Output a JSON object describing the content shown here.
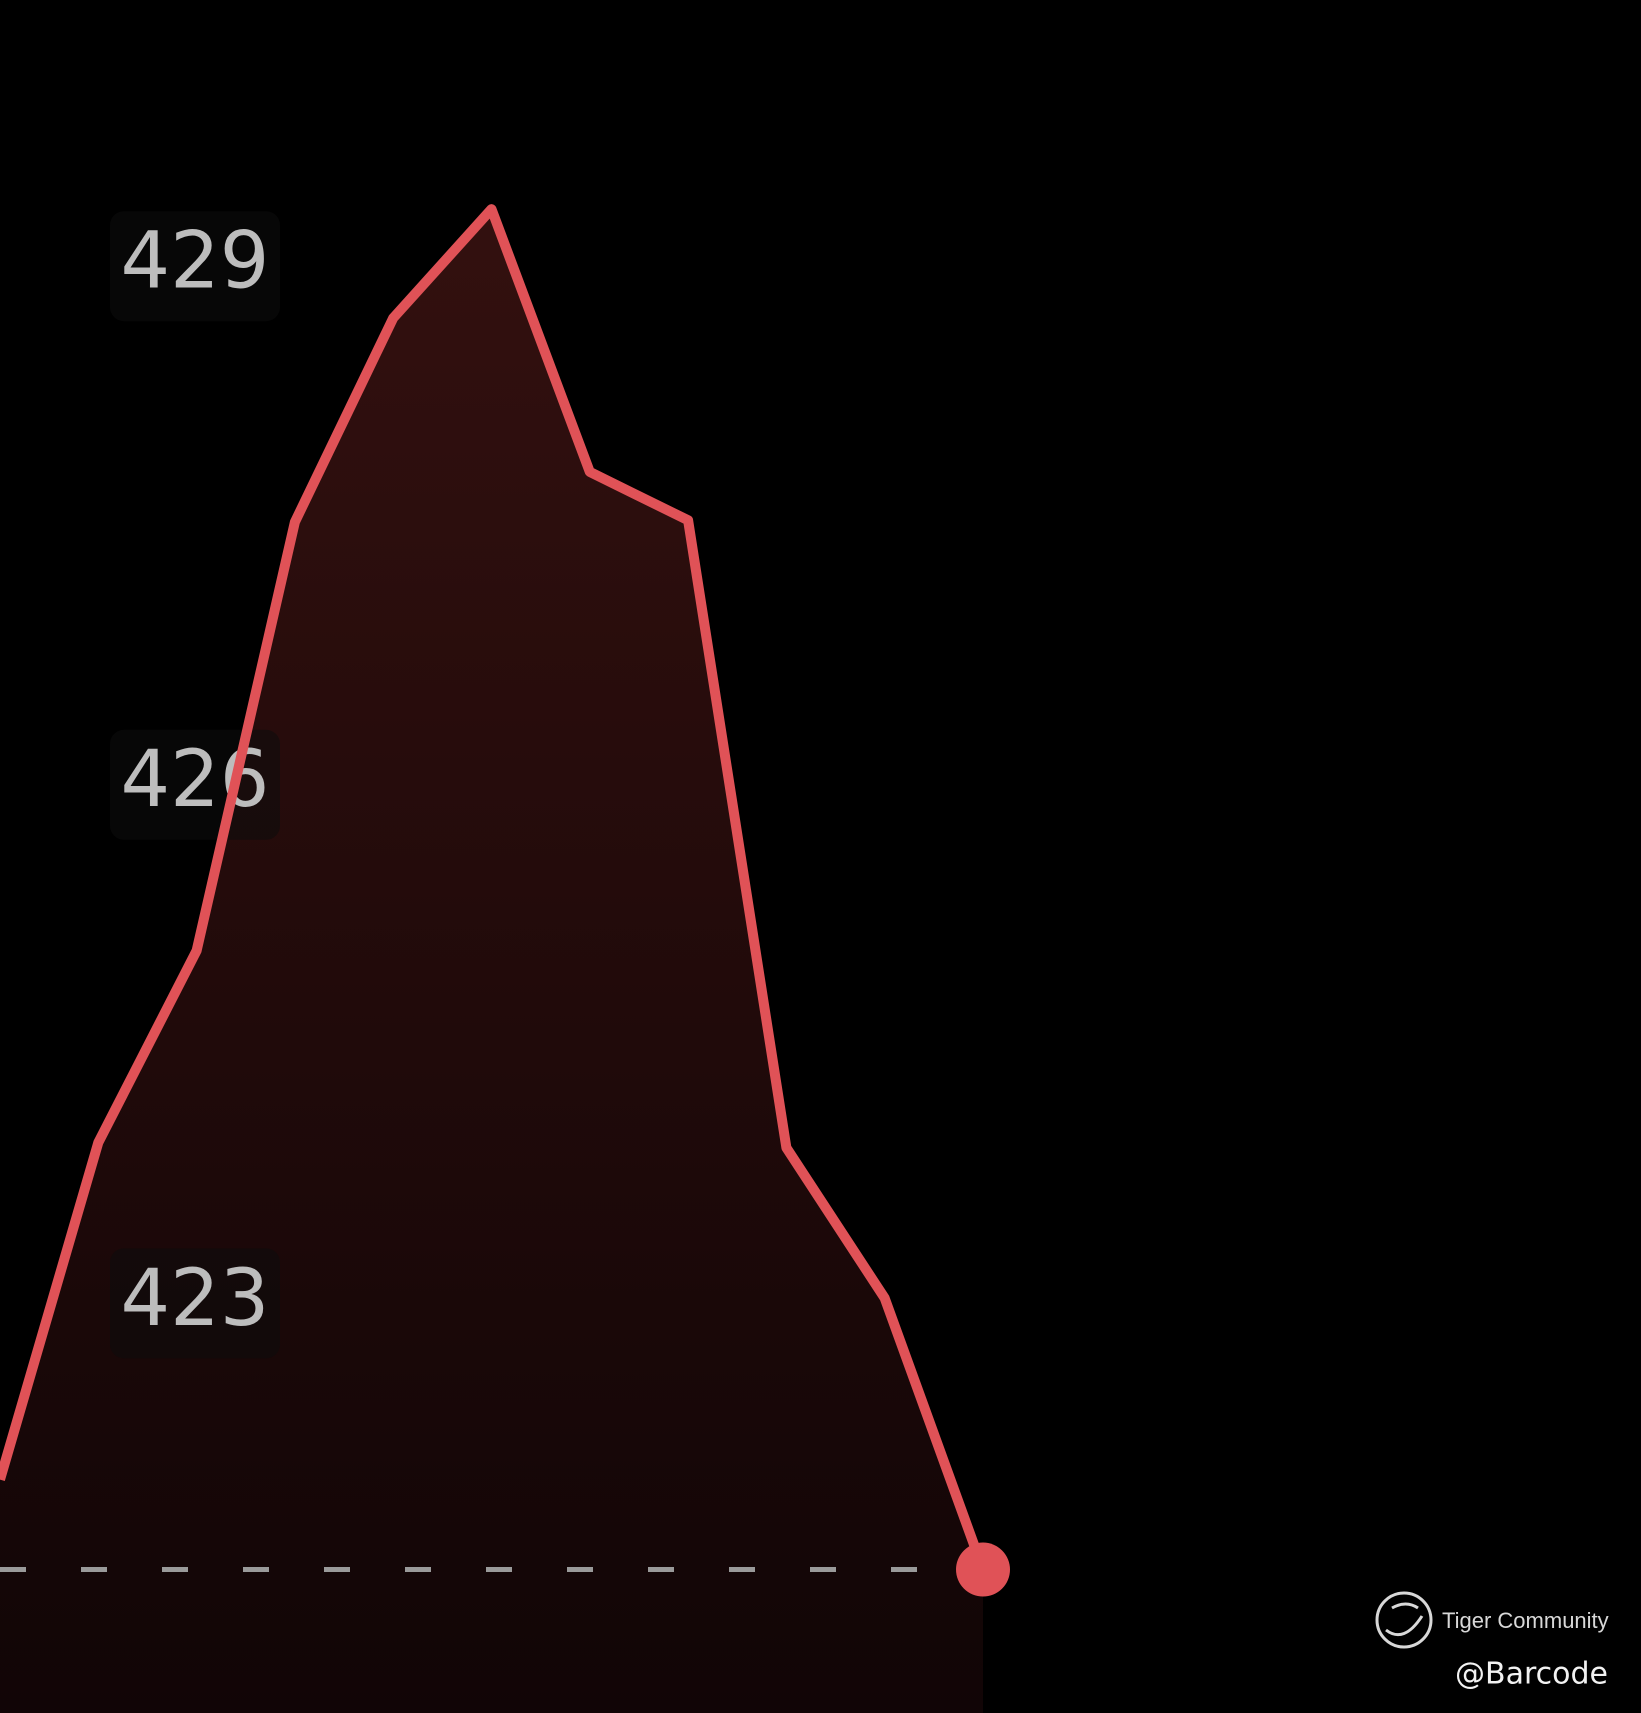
{
  "chart_data": {
    "type": "line",
    "categories": [
      null,
      null,
      null,
      null,
      null,
      null,
      null,
      null,
      null,
      null,
      null
    ],
    "values": [
      421.98,
      423.93,
      425.04,
      427.52,
      428.7,
      429.33,
      427.81,
      427.53,
      423.9,
      423.03,
      421.46
    ],
    "color": "#e05257",
    "reference_line": 421.46,
    "ylim": [
      420.63,
      430.54
    ],
    "yticks": [
      423,
      426,
      429
    ],
    "grid": false
  },
  "watermark": {
    "brand": "Tiger Community",
    "user": "@Barcode"
  }
}
